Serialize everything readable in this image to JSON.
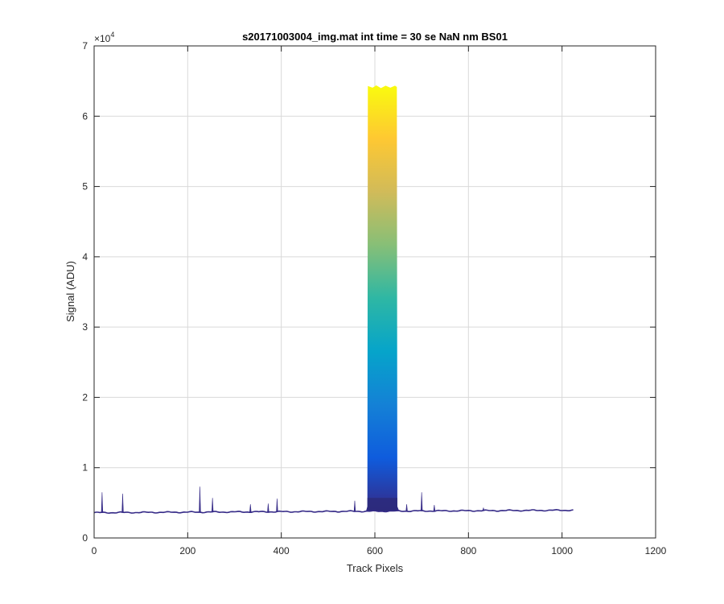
{
  "chart_data": {
    "type": "line",
    "title": "s20171003004_img.mat int time = 30 se  NaN nm BS01",
    "xlabel": "Track Pixels",
    "ylabel": "Signal (ADU)",
    "xlim": [
      0,
      1200
    ],
    "ylim": [
      0,
      70000
    ],
    "x_ticks": [
      "0",
      "200",
      "400",
      "600",
      "800",
      "1000",
      "1200"
    ],
    "y_ticks": [
      "0",
      "1",
      "2",
      "3",
      "4",
      "5",
      "6",
      "7"
    ],
    "y_exponent_base": "×10",
    "y_exponent_power": "4",
    "grid": true,
    "colormap": "parula",
    "colormap_stops": [
      "#352A87",
      "#0F5CDD",
      "#1481D6",
      "#06A4CA",
      "#2EB7A4",
      "#87BF77",
      "#D1BB59",
      "#FEC832",
      "#F9FB0E"
    ],
    "baseline": {
      "x": [
        0,
        1024
      ],
      "y": [
        3600,
        3950
      ]
    },
    "plateau": {
      "x_start": 585,
      "x_end": 647,
      "y_top": 64300,
      "y_base": 4500
    },
    "spikes": [
      {
        "x": 17,
        "y": 6500
      },
      {
        "x": 61,
        "y": 6300
      },
      {
        "x": 226,
        "y": 7300
      },
      {
        "x": 253,
        "y": 5700
      },
      {
        "x": 334,
        "y": 4800
      },
      {
        "x": 372,
        "y": 4900
      },
      {
        "x": 391,
        "y": 5600
      },
      {
        "x": 557,
        "y": 5300
      },
      {
        "x": 668,
        "y": 4800
      },
      {
        "x": 700,
        "y": 6500
      },
      {
        "x": 727,
        "y": 4700
      },
      {
        "x": 832,
        "y": 4300
      }
    ]
  }
}
